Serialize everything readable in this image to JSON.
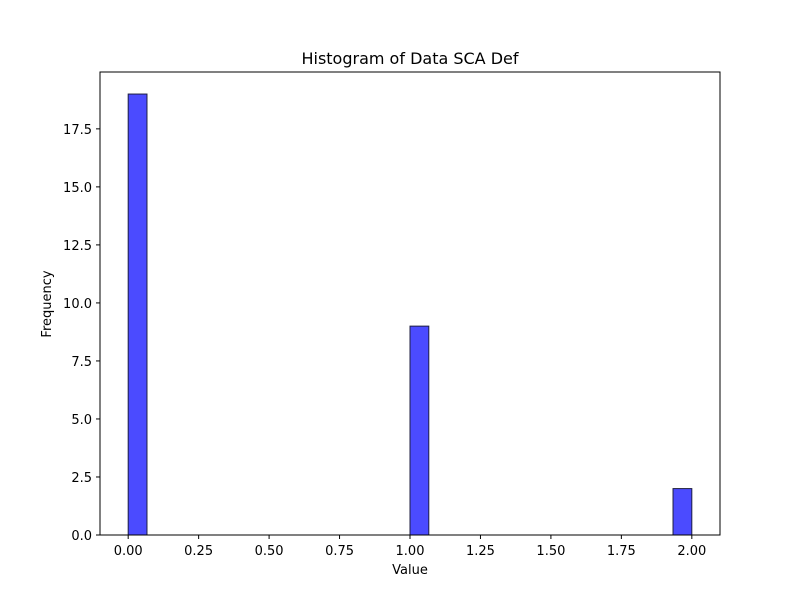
{
  "chart_data": {
    "type": "bar",
    "title": "Histogram of Data SCA Def",
    "xlabel": "Value",
    "ylabel": "Frequency",
    "xlim": [
      -0.1,
      2.1
    ],
    "ylim": [
      0,
      19.95
    ],
    "xticks": [
      0,
      0.25,
      0.5,
      0.75,
      1.0,
      1.25,
      1.5,
      1.75,
      2.0
    ],
    "xtick_labels": [
      "0.00",
      "0.25",
      "0.50",
      "0.75",
      "1.00",
      "1.25",
      "1.50",
      "1.75",
      "2.00"
    ],
    "yticks": [
      0,
      2.5,
      5.0,
      7.5,
      10.0,
      12.5,
      15.0,
      17.5
    ],
    "ytick_labels": [
      "0.0",
      "2.5",
      "5.0",
      "7.5",
      "10.0",
      "12.5",
      "15.0",
      "17.5"
    ],
    "bins": [
      {
        "start": 0.0,
        "end": 0.0667,
        "count": 19
      },
      {
        "start": 1.0,
        "end": 1.0667,
        "count": 9
      },
      {
        "start": 1.9333,
        "end": 2.0,
        "count": 2
      }
    ],
    "bar_color": "#4B4BFF",
    "bar_edge_color": "#1f1f40",
    "grid": false,
    "legend": "none"
  }
}
